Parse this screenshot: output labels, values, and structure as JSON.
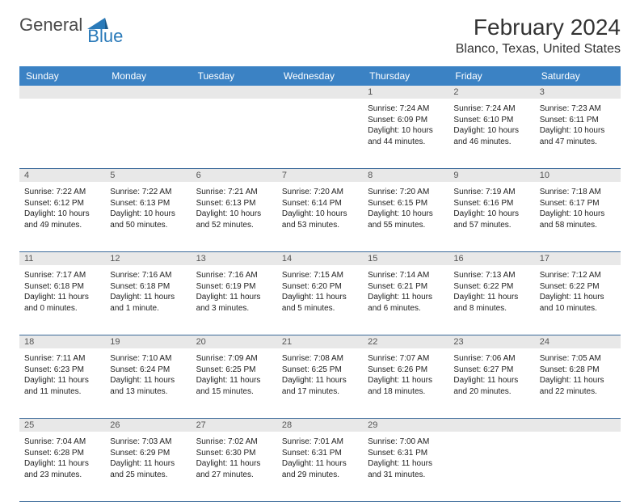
{
  "logo": {
    "text1": "General",
    "text2": "Blue",
    "shape_color": "#2a7ab9",
    "text_color_general": "#4a4a4a"
  },
  "title": "February 2024",
  "location": "Blanco, Texas, United States",
  "header_bg": "#3b82c4",
  "week_border_color": "#3b6a9a",
  "daynum_bg": "#e8e8e8",
  "day_headers": [
    "Sunday",
    "Monday",
    "Tuesday",
    "Wednesday",
    "Thursday",
    "Friday",
    "Saturday"
  ],
  "weeks": [
    [
      null,
      null,
      null,
      null,
      {
        "n": "1",
        "sunrise": "7:24 AM",
        "sunset": "6:09 PM",
        "daylight": "10 hours and 44 minutes."
      },
      {
        "n": "2",
        "sunrise": "7:24 AM",
        "sunset": "6:10 PM",
        "daylight": "10 hours and 46 minutes."
      },
      {
        "n": "3",
        "sunrise": "7:23 AM",
        "sunset": "6:11 PM",
        "daylight": "10 hours and 47 minutes."
      }
    ],
    [
      {
        "n": "4",
        "sunrise": "7:22 AM",
        "sunset": "6:12 PM",
        "daylight": "10 hours and 49 minutes."
      },
      {
        "n": "5",
        "sunrise": "7:22 AM",
        "sunset": "6:13 PM",
        "daylight": "10 hours and 50 minutes."
      },
      {
        "n": "6",
        "sunrise": "7:21 AM",
        "sunset": "6:13 PM",
        "daylight": "10 hours and 52 minutes."
      },
      {
        "n": "7",
        "sunrise": "7:20 AM",
        "sunset": "6:14 PM",
        "daylight": "10 hours and 53 minutes."
      },
      {
        "n": "8",
        "sunrise": "7:20 AM",
        "sunset": "6:15 PM",
        "daylight": "10 hours and 55 minutes."
      },
      {
        "n": "9",
        "sunrise": "7:19 AM",
        "sunset": "6:16 PM",
        "daylight": "10 hours and 57 minutes."
      },
      {
        "n": "10",
        "sunrise": "7:18 AM",
        "sunset": "6:17 PM",
        "daylight": "10 hours and 58 minutes."
      }
    ],
    [
      {
        "n": "11",
        "sunrise": "7:17 AM",
        "sunset": "6:18 PM",
        "daylight": "11 hours and 0 minutes."
      },
      {
        "n": "12",
        "sunrise": "7:16 AM",
        "sunset": "6:18 PM",
        "daylight": "11 hours and 1 minute."
      },
      {
        "n": "13",
        "sunrise": "7:16 AM",
        "sunset": "6:19 PM",
        "daylight": "11 hours and 3 minutes."
      },
      {
        "n": "14",
        "sunrise": "7:15 AM",
        "sunset": "6:20 PM",
        "daylight": "11 hours and 5 minutes."
      },
      {
        "n": "15",
        "sunrise": "7:14 AM",
        "sunset": "6:21 PM",
        "daylight": "11 hours and 6 minutes."
      },
      {
        "n": "16",
        "sunrise": "7:13 AM",
        "sunset": "6:22 PM",
        "daylight": "11 hours and 8 minutes."
      },
      {
        "n": "17",
        "sunrise": "7:12 AM",
        "sunset": "6:22 PM",
        "daylight": "11 hours and 10 minutes."
      }
    ],
    [
      {
        "n": "18",
        "sunrise": "7:11 AM",
        "sunset": "6:23 PM",
        "daylight": "11 hours and 11 minutes."
      },
      {
        "n": "19",
        "sunrise": "7:10 AM",
        "sunset": "6:24 PM",
        "daylight": "11 hours and 13 minutes."
      },
      {
        "n": "20",
        "sunrise": "7:09 AM",
        "sunset": "6:25 PM",
        "daylight": "11 hours and 15 minutes."
      },
      {
        "n": "21",
        "sunrise": "7:08 AM",
        "sunset": "6:25 PM",
        "daylight": "11 hours and 17 minutes."
      },
      {
        "n": "22",
        "sunrise": "7:07 AM",
        "sunset": "6:26 PM",
        "daylight": "11 hours and 18 minutes."
      },
      {
        "n": "23",
        "sunrise": "7:06 AM",
        "sunset": "6:27 PM",
        "daylight": "11 hours and 20 minutes."
      },
      {
        "n": "24",
        "sunrise": "7:05 AM",
        "sunset": "6:28 PM",
        "daylight": "11 hours and 22 minutes."
      }
    ],
    [
      {
        "n": "25",
        "sunrise": "7:04 AM",
        "sunset": "6:28 PM",
        "daylight": "11 hours and 23 minutes."
      },
      {
        "n": "26",
        "sunrise": "7:03 AM",
        "sunset": "6:29 PM",
        "daylight": "11 hours and 25 minutes."
      },
      {
        "n": "27",
        "sunrise": "7:02 AM",
        "sunset": "6:30 PM",
        "daylight": "11 hours and 27 minutes."
      },
      {
        "n": "28",
        "sunrise": "7:01 AM",
        "sunset": "6:31 PM",
        "daylight": "11 hours and 29 minutes."
      },
      {
        "n": "29",
        "sunrise": "7:00 AM",
        "sunset": "6:31 PM",
        "daylight": "11 hours and 31 minutes."
      },
      null,
      null
    ]
  ],
  "labels": {
    "sunrise": "Sunrise: ",
    "sunset": "Sunset: ",
    "daylight": "Daylight: "
  }
}
